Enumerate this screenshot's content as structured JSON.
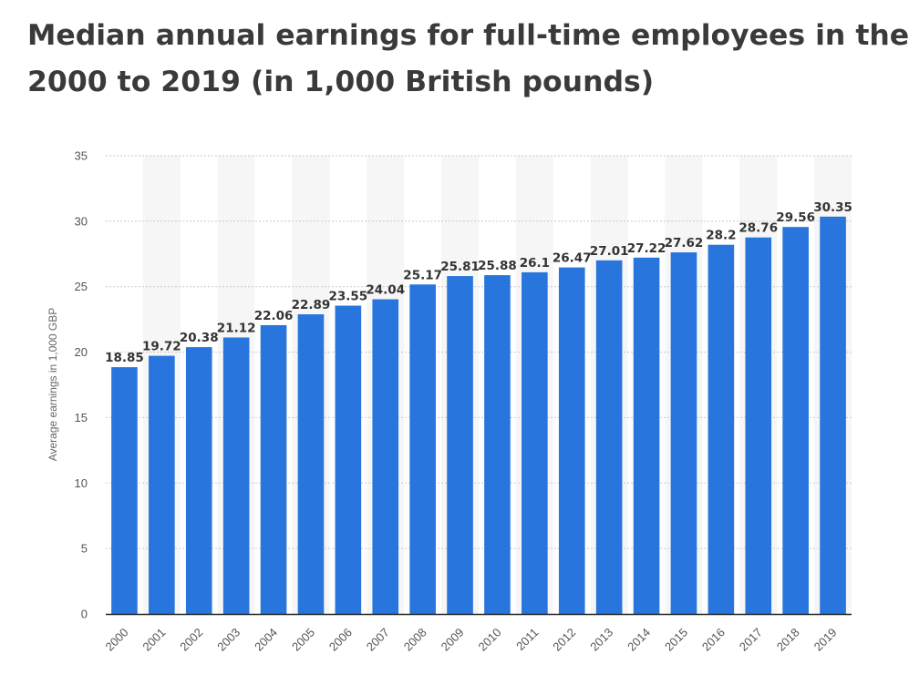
{
  "title_lines": [
    "Median annual earnings for full-time employees in the",
    "2000 to 2019 (in 1,000 British pounds)"
  ],
  "colors": {
    "bar": "#2876dd",
    "title": "#3a3a3a",
    "label": "#333333",
    "axis_text": "#555555",
    "band": "#f6f6f6",
    "grid": "#c9c9c9"
  },
  "chart_data": {
    "type": "bar",
    "title": "Median annual earnings for full-time employees in the 2000 to 2019 (in 1,000 British pounds)",
    "xlabel": "",
    "ylabel": "Average earnings in 1,000 GBP",
    "ylim": [
      0,
      35
    ],
    "yticks": [
      0,
      5,
      10,
      15,
      20,
      25,
      30,
      35
    ],
    "grid": true,
    "legend": "none",
    "categories": [
      "2000",
      "2001",
      "2002",
      "2003",
      "2004",
      "2005",
      "2006",
      "2007",
      "2008",
      "2009",
      "2010",
      "2011",
      "2012",
      "2013",
      "2014",
      "2015",
      "2016",
      "2017",
      "2018",
      "2019"
    ],
    "values": [
      18.85,
      19.72,
      20.38,
      21.12,
      22.06,
      22.89,
      23.55,
      24.04,
      25.17,
      25.81,
      25.88,
      26.1,
      26.47,
      27.01,
      27.22,
      27.62,
      28.2,
      28.76,
      29.56,
      30.35
    ],
    "value_labels": [
      "18.85",
      "19.72",
      "20.38",
      "21.12",
      "22.06",
      "22.89",
      "23.55",
      "24.04",
      "25.17",
      "25.81",
      "25.88",
      "26.1",
      "26.47",
      "27.01",
      "27.22",
      "27.62",
      "28.2",
      "28.76",
      "29.56",
      "30.35"
    ]
  }
}
